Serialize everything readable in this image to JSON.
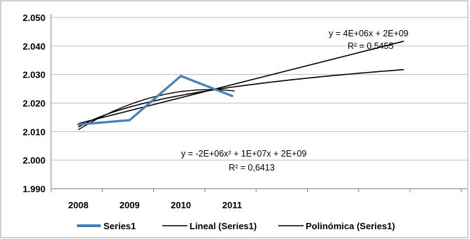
{
  "chart_data": {
    "type": "line",
    "title": "",
    "xlabel": "",
    "ylabel": "",
    "categories": [
      "2008",
      "2009",
      "2010",
      "2011"
    ],
    "yticks": [
      "2.050",
      "2.040",
      "2.030",
      "2.020",
      "2.010",
      "2.000",
      "1.990"
    ],
    "ylim": [
      1.99,
      2.05
    ],
    "grid": "horizontal",
    "legend_position": "bottom",
    "series": [
      {
        "name": "Series1",
        "values": [
          2.0125,
          2.014,
          2.0295,
          2.0225
        ],
        "color": "#4a7ebb"
      }
    ],
    "trendlines": [
      {
        "name": "Lineal (Series1)",
        "kind": "linear",
        "equation": "y = 4E+06x + 2E+09",
        "r2": "R² = 0,5455",
        "color": "#000000"
      },
      {
        "name": "Polinómica (Series1)",
        "kind": "polynomial",
        "equation": "y = -2E+06x² + 1E+07x + 2E+09",
        "r2": "R² = 0,6413",
        "color": "#000000"
      }
    ]
  }
}
